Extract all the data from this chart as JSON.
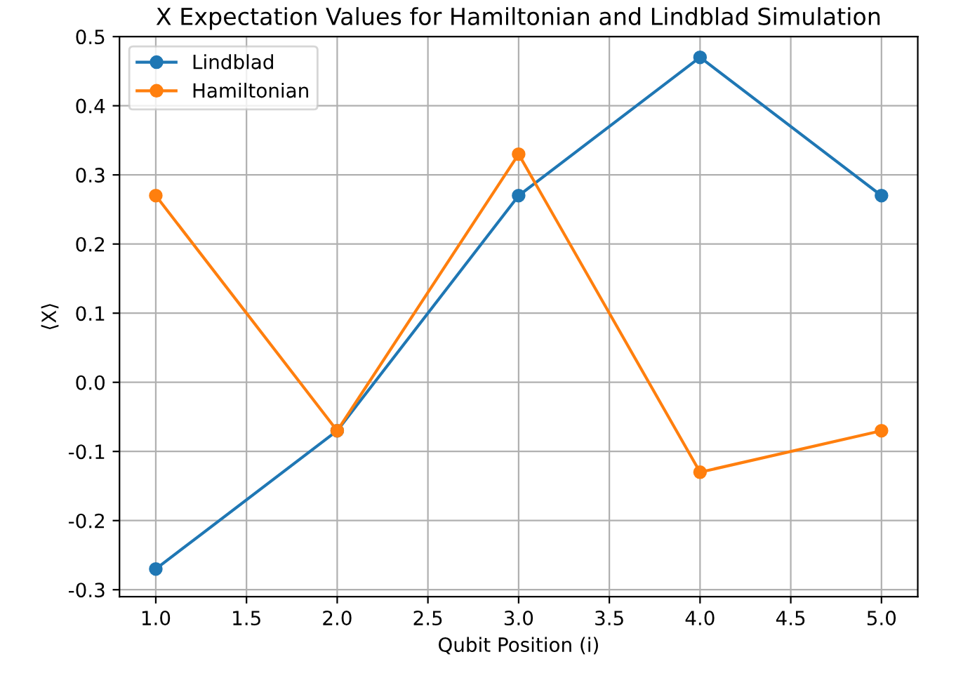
{
  "chart_data": {
    "type": "line",
    "title": "X Expectation Values for Hamiltonian and Lindblad Simulation",
    "xlabel": "Qubit Position (i)",
    "ylabel": "⟨X⟩",
    "x": [
      1,
      2,
      3,
      4,
      5
    ],
    "series": [
      {
        "name": "Lindblad",
        "color": "#1f77b4",
        "values": [
          -0.27,
          -0.07,
          0.27,
          0.47,
          0.27
        ]
      },
      {
        "name": "Hamiltonian",
        "color": "#ff7f0e",
        "values": [
          0.27,
          -0.07,
          0.33,
          -0.13,
          -0.07
        ]
      }
    ],
    "xlim": [
      0.8,
      5.2
    ],
    "xticks": [
      {
        "value": 1,
        "label": "1.0"
      },
      1.5,
      {
        "value": 2,
        "label": "2.0"
      },
      2.5,
      {
        "value": 3,
        "label": "3.0"
      },
      3.5,
      {
        "value": 4,
        "label": "4.0"
      },
      4.5,
      {
        "value": 5,
        "label": "5.0"
      }
    ],
    "ylim": [
      -0.31,
      0.5
    ],
    "yticks": [
      -0.3,
      -0.2,
      -0.1,
      {
        "value": 0,
        "label": "0.0"
      },
      0.1,
      0.2,
      0.3,
      0.4,
      0.5
    ],
    "grid": true,
    "legend": "top left",
    "marker": "circle",
    "line_style": "solid"
  }
}
